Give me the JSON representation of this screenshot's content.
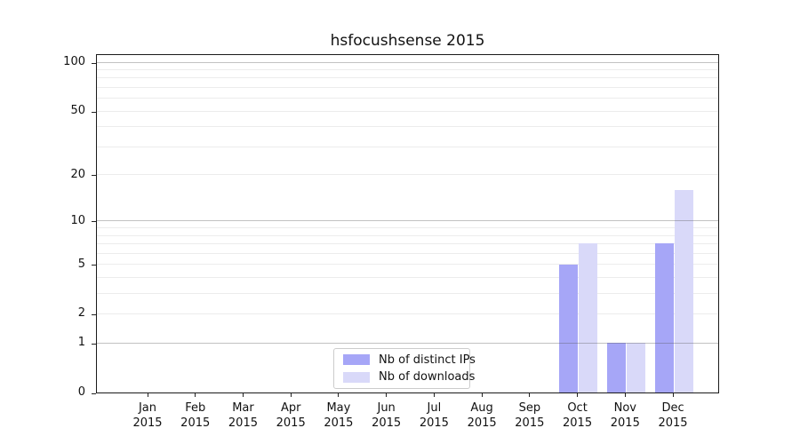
{
  "chart_data": {
    "type": "bar",
    "title": "hsfocushsense 2015",
    "scale": "log10(1+x)",
    "ylim": [
      0,
      113
    ],
    "grid": "horizontal",
    "legend_position": "bottom-center-inside",
    "categories": [
      {
        "month": "Jan",
        "year": "2015"
      },
      {
        "month": "Feb",
        "year": "2015"
      },
      {
        "month": "Mar",
        "year": "2015"
      },
      {
        "month": "Apr",
        "year": "2015"
      },
      {
        "month": "May",
        "year": "2015"
      },
      {
        "month": "Jun",
        "year": "2015"
      },
      {
        "month": "Jul",
        "year": "2015"
      },
      {
        "month": "Aug",
        "year": "2015"
      },
      {
        "month": "Sep",
        "year": "2015"
      },
      {
        "month": "Oct",
        "year": "2015"
      },
      {
        "month": "Nov",
        "year": "2015"
      },
      {
        "month": "Dec",
        "year": "2015"
      }
    ],
    "series": [
      {
        "key": "distinct-ips",
        "name": "Nb of distinct IPs",
        "color": "#a6a6f7",
        "values": [
          0,
          0,
          0,
          0,
          0,
          0,
          0,
          0,
          0,
          5,
          1,
          7
        ]
      },
      {
        "key": "downloads",
        "name": "Nb of downloads",
        "color": "#d9d9f9",
        "values": [
          0,
          0,
          0,
          0,
          0,
          0,
          0,
          0,
          0,
          7,
          1,
          16
        ]
      }
    ],
    "y_ticks": [
      0,
      1,
      2,
      5,
      10,
      20,
      50,
      100
    ],
    "major_gridlines": [
      1,
      10,
      100
    ],
    "minor_gridlines": [
      2,
      3,
      4,
      5,
      6,
      7,
      8,
      9,
      20,
      30,
      40,
      50,
      60,
      70,
      80,
      90
    ]
  }
}
